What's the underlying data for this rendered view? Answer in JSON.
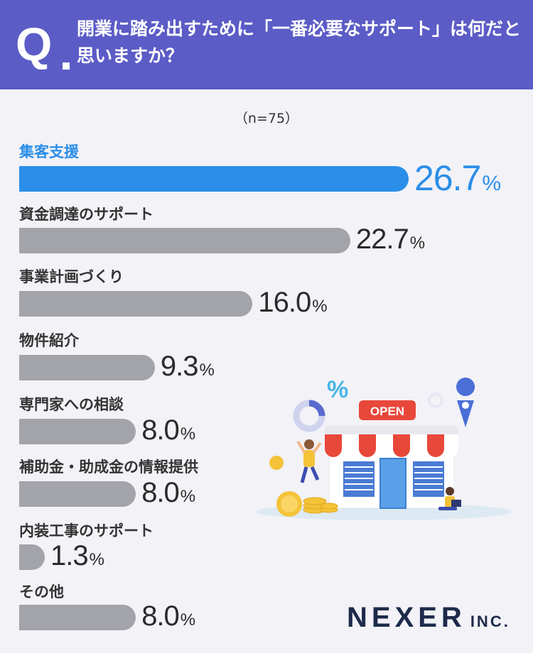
{
  "header": {
    "q_mark": "Q",
    "question": "開業に踏み出すために「一番必要なサポート」は何だと思いますか？"
  },
  "sample": "（n=75）",
  "chart_data": {
    "type": "bar",
    "orientation": "horizontal",
    "categories": [
      "集客支援",
      "資金調達のサポート",
      "事業計画づくり",
      "物件紹介",
      "専門家への相談",
      "補助金・助成金の情報提供",
      "内装工事のサポート",
      "その他"
    ],
    "values": [
      26.7,
      22.7,
      16.0,
      9.3,
      8.0,
      8.0,
      1.3,
      8.0
    ],
    "value_labels": [
      "26.7",
      "22.7",
      "16.0",
      "9.3",
      "8.0",
      "8.0",
      "1.3",
      "8.0"
    ],
    "unit": "%",
    "highlight_index": 0,
    "colors": {
      "highlight": "#2b8ee8",
      "default": "#a3a3aa"
    }
  },
  "illustration": {
    "sign_text": "OPEN",
    "percent_symbol": "%"
  },
  "logo": {
    "main": "NEXER",
    "sub": "INC."
  },
  "colors": {
    "header_bg": "#5b5cc6",
    "page_bg": "#f2f2f7",
    "text": "#333333"
  }
}
